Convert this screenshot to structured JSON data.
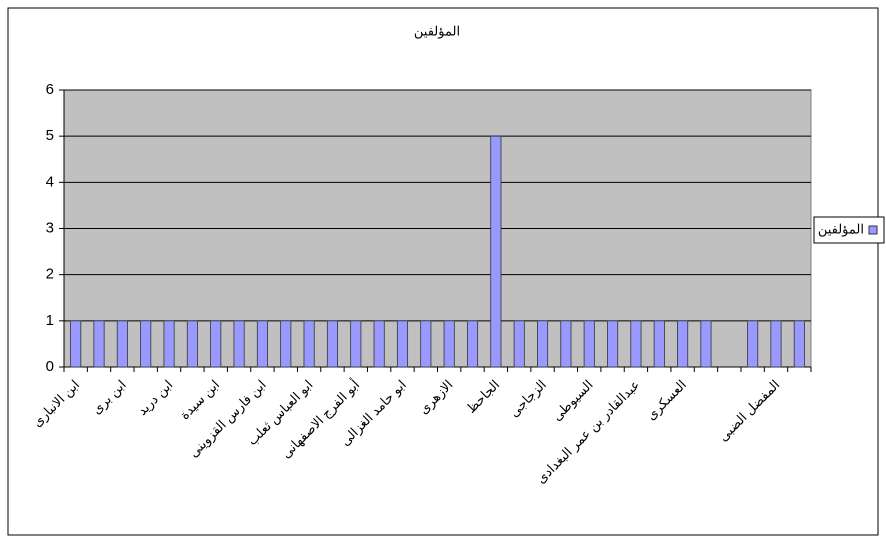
{
  "chart_data": {
    "type": "bar",
    "title": "المؤلفين",
    "categories": [
      "ابن الانبارى",
      null,
      "ابن برى",
      null,
      "ابن دريد",
      null,
      "ابن سيدة",
      null,
      "ابن فارس القزوينى",
      null,
      "ابو العباس ثعلب",
      null,
      "أبو الفرج الاصفهانى",
      null,
      "ابو حامد الغزالى",
      null,
      "الازهرى",
      null,
      "الجاحظ",
      null,
      "الزجاجى",
      null,
      "السيوطى",
      null,
      "عبدالقادر بن عمر البغدادى",
      null,
      "العسكرى",
      null,
      null,
      null,
      "المفضل الضبى",
      null
    ],
    "series": [
      {
        "name": "المؤلفين",
        "color": "#9999ff",
        "values": [
          1,
          1,
          1,
          1,
          1,
          1,
          1,
          1,
          1,
          1,
          1,
          1,
          1,
          1,
          1,
          1,
          1,
          1,
          5,
          1,
          1,
          1,
          1,
          1,
          1,
          1,
          1,
          1,
          0,
          1,
          1,
          1
        ]
      }
    ],
    "ylim": [
      0,
      6
    ],
    "yticks": [
      0,
      1,
      2,
      3,
      4,
      5,
      6
    ],
    "grid": true,
    "legend": "right"
  }
}
